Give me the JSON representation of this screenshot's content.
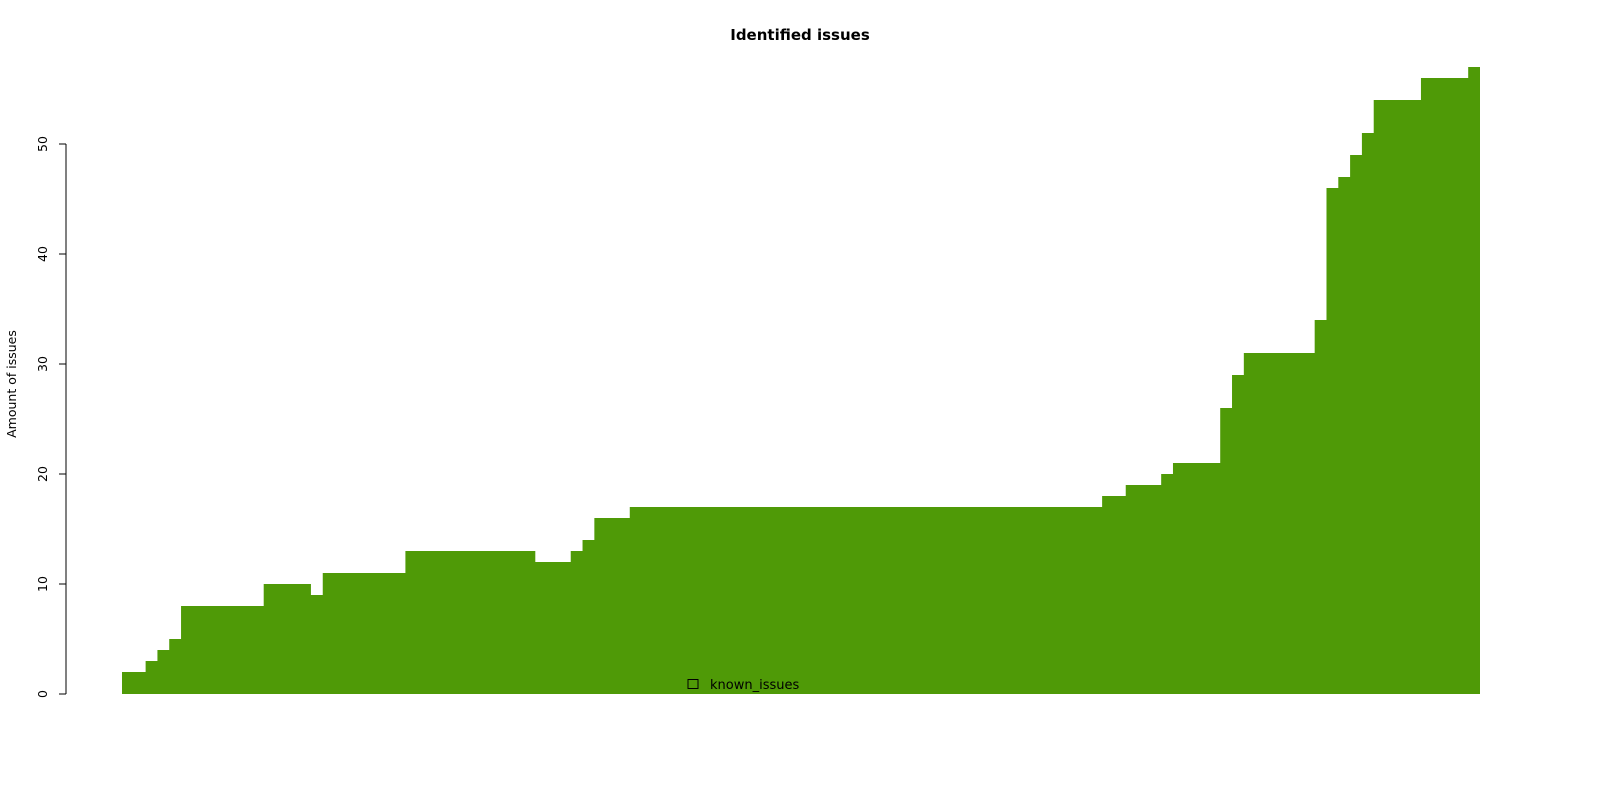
{
  "chart_data": {
    "type": "area",
    "title": "Identified issues",
    "xlabel": "",
    "ylabel": "Amount of issues",
    "ylim": [
      0,
      57
    ],
    "yticks": [
      0,
      10,
      20,
      30,
      40,
      50
    ],
    "grid": false,
    "legend_position": "bottom-center",
    "series": [
      {
        "name": "known_issues",
        "color": "#4f9a07",
        "values": [
          2,
          2,
          3,
          4,
          5,
          8,
          8,
          8,
          8,
          8,
          8,
          8,
          10,
          10,
          10,
          10,
          9,
          11,
          11,
          11,
          11,
          11,
          11,
          11,
          13,
          13,
          13,
          13,
          13,
          13,
          13,
          13,
          13,
          13,
          13,
          12,
          12,
          12,
          13,
          14,
          16,
          16,
          16,
          17,
          17,
          17,
          17,
          17,
          17,
          17,
          17,
          17,
          17,
          17,
          17,
          17,
          17,
          17,
          17,
          17,
          17,
          17,
          17,
          17,
          17,
          17,
          17,
          17,
          17,
          17,
          17,
          17,
          17,
          17,
          17,
          17,
          17,
          17,
          17,
          17,
          17,
          17,
          17,
          18,
          18,
          19,
          19,
          19,
          20,
          21,
          21,
          21,
          21,
          26,
          29,
          31,
          31,
          31,
          31,
          31,
          31,
          34,
          46,
          47,
          49,
          51,
          54,
          54,
          54,
          54,
          56,
          56,
          56,
          56,
          57
        ]
      }
    ]
  }
}
